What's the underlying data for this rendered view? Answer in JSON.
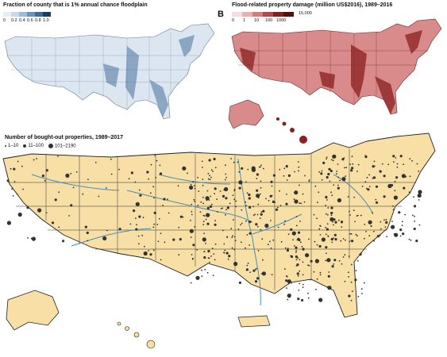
{
  "panelA": {
    "title": "Fraction of county that is 1% annual chance floodplain",
    "scale_ticks": [
      "0",
      "0.2",
      "0.4",
      "0.6",
      "0.8",
      "1.0"
    ],
    "scale_colors": [
      "#e6eef5",
      "#c9d9e8",
      "#9fbcd7",
      "#6c93bd",
      "#3e6a9c",
      "#1b3c66"
    ]
  },
  "panelB": {
    "letter": "B",
    "title": "Flood-related property damage (million US$2016), 1989–2016",
    "scale_ticks": [
      "0",
      "1",
      "10",
      "100",
      "1000"
    ],
    "scale_max": "15,000",
    "scale_colors": [
      "#f6dcdc",
      "#eab0b0",
      "#d67a7a",
      "#b84747",
      "#8a1f1f",
      "#5a0b0b"
    ]
  },
  "panelC": {
    "title": "Number of bought-out properties, 1989–2017",
    "legend": [
      "1–10",
      "11–100",
      "101–2190"
    ],
    "map_fill": "#f7dfa6",
    "river_color": "#4a8fb5"
  }
}
